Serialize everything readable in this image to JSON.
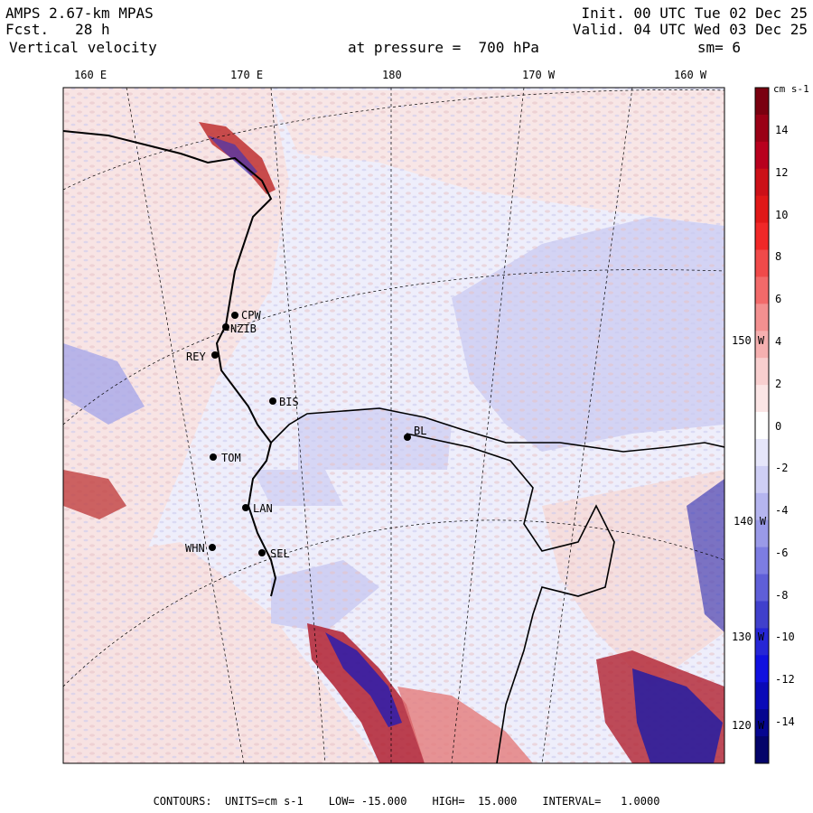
{
  "header": {
    "model": "AMPS 2.67-km MPAS",
    "fcst_label": "Fcst.",
    "fcst_value": "28 h",
    "variable": "Vertical velocity",
    "level_text": "at pressure =  700 hPa",
    "init": "Init. 00 UTC Tue 02 Dec 25",
    "valid": "Valid. 04 UTC Wed 03 Dec 25",
    "smoothing": "sm= 6"
  },
  "lon_labels": [
    {
      "text": "160 E"
    },
    {
      "text": "170 E"
    },
    {
      "text": "180"
    },
    {
      "text": "170 W"
    },
    {
      "text": "160 W"
    }
  ],
  "lat_labels": [
    {
      "text": "150 W"
    },
    {
      "text": "140 W"
    },
    {
      "text": "130 W"
    },
    {
      "text": "120 W"
    }
  ],
  "stations": [
    {
      "code": "CPW"
    },
    {
      "code": "NZIB"
    },
    {
      "code": "REY"
    },
    {
      "code": "BIS"
    },
    {
      "code": "TOM"
    },
    {
      "code": "LAN"
    },
    {
      "code": "WHN"
    },
    {
      "code": "SEL"
    },
    {
      "code": "BL"
    }
  ],
  "colorbar": {
    "unit": "cm s-1",
    "ticks": [
      "14",
      "12",
      "10",
      "8",
      "6",
      "4",
      "2",
      "0",
      "-2",
      "-4",
      "-6",
      "-8",
      "-10",
      "-12",
      "-14"
    ],
    "colors": [
      "#7a0010",
      "#9a0016",
      "#b8001e",
      "#cc1018",
      "#e01818",
      "#f02828",
      "#f04a4a",
      "#f26a6a",
      "#f39090",
      "#f5b0b0",
      "#f8cfcf",
      "#fbe5e5",
      "#ffffff",
      "#e6e6fa",
      "#cfcff5",
      "#b5b5ef",
      "#9a9ae8",
      "#7d7de2",
      "#5f5fd8",
      "#4040cc",
      "#2626d6",
      "#1010e0",
      "#0a0ab8",
      "#060690",
      "#04046a"
    ]
  },
  "footer": {
    "contours": "CONTOURS:  UNITS=cm s-1",
    "low": "LOW= -15.000",
    "high": "HIGH=  15.000",
    "interval": "INTERVAL=   1.0000"
  },
  "colors": {
    "positive": "#f2b8b8",
    "negative": "#c8c8f2",
    "strong_pos": "#c00018",
    "strong_neg": "#1010c0"
  }
}
